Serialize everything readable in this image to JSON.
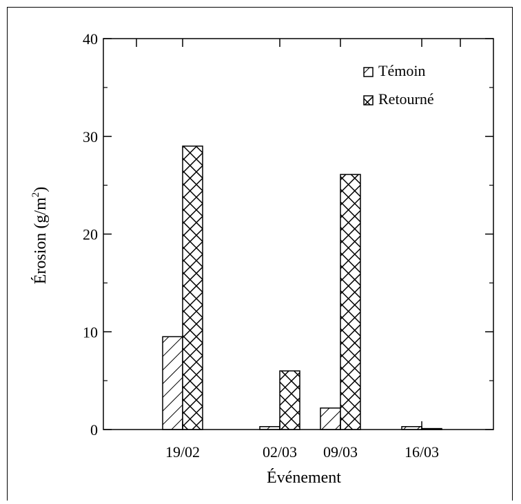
{
  "chart_data": {
    "type": "bar",
    "xlabel": "Événement",
    "ylabel": "Érosion (g/m²)",
    "ylabel_base": "Érosion (g/m",
    "ylabel_sup": "2",
    "ylabel_close": ")",
    "categories": [
      "19/02",
      "02/03",
      "09/03",
      "16/03"
    ],
    "ylim": [
      0,
      40
    ],
    "yticks": [
      0,
      10,
      20,
      30,
      40
    ],
    "grid": false,
    "legend_position": "top-right",
    "series": [
      {
        "name": "Témoin",
        "values": [
          9.5,
          0.3,
          2.2,
          0.3
        ],
        "pattern": "diagonal-hatch"
      },
      {
        "name": "Retourné",
        "values": [
          29.0,
          6.0,
          26.1,
          0.1
        ],
        "pattern": "cross-hatch"
      }
    ],
    "colors": {
      "stroke": "#000000",
      "fill": "#ffffff"
    }
  }
}
